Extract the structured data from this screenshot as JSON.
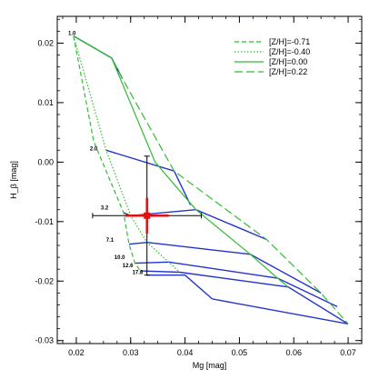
{
  "chart_data": {
    "type": "line",
    "xlabel": "Mg [mag]",
    "ylabel": "H_β [mag]",
    "xlim": [
      0.0165,
      0.0725
    ],
    "ylim": [
      -0.0305,
      0.0245
    ],
    "x_ticks": [
      0.02,
      0.03,
      0.04,
      0.05,
      0.06,
      0.07
    ],
    "x_tick_labels": [
      "0.02",
      "0.03",
      "0.04",
      "0.05",
      "0.06",
      "0.07"
    ],
    "y_ticks": [
      0.02,
      0.01,
      0.0,
      -0.01,
      -0.02,
      -0.03
    ],
    "y_tick_labels": [
      "0.02",
      "0.01",
      "0.00",
      "-0.01",
      "-0.02",
      "-0.03"
    ],
    "legend_position": "top-right",
    "colors": {
      "metallicity_lines": "#33bb33",
      "age_lines": "#2233cc",
      "observation": "#dd1111",
      "error_bar": "#000000"
    },
    "metallicity_lines": [
      {
        "name": "[Z/H]=-0.71",
        "style": "dashed-short",
        "points": [
          [
            0.0195,
            0.0212
          ],
          [
            0.0232,
            0.0035
          ],
          [
            0.0287,
            -0.0085
          ],
          [
            0.0297,
            -0.0138
          ],
          [
            0.0308,
            -0.017
          ],
          [
            0.0318,
            -0.0183
          ]
        ]
      },
      {
        "name": "[Z/H]=-0.40",
        "style": "dotted",
        "points": [
          [
            0.0195,
            0.0212
          ],
          [
            0.0255,
            0.002
          ],
          [
            0.03,
            -0.009
          ],
          [
            0.033,
            -0.0135
          ],
          [
            0.037,
            -0.0168
          ],
          [
            0.039,
            -0.0185
          ]
        ]
      },
      {
        "name": "[Z/H]=0.00",
        "style": "solid",
        "points": [
          [
            0.0195,
            0.0212
          ],
          [
            0.0265,
            0.0175
          ],
          [
            0.0345,
            0.0
          ],
          [
            0.042,
            -0.008
          ],
          [
            0.052,
            -0.0155
          ],
          [
            0.057,
            -0.0195
          ],
          [
            0.059,
            -0.021
          ]
        ]
      },
      {
        "name": "[Z/H]=0.22",
        "style": "dashed-long",
        "points": [
          [
            0.0195,
            0.0212
          ],
          [
            0.0265,
            0.0175
          ],
          [
            0.0285,
            0.014
          ],
          [
            0.038,
            -0.0015
          ],
          [
            0.055,
            -0.013
          ],
          [
            0.065,
            -0.022
          ],
          [
            0.07,
            -0.0272
          ]
        ]
      }
    ],
    "age_lines": [
      {
        "label": "1.0",
        "label_at": [
          0.0185,
          0.0214
        ],
        "points": [
          [
            0.0195,
            0.0212
          ],
          [
            0.0265,
            0.0175
          ],
          [
            0.0285,
            0.014
          ]
        ]
      },
      {
        "label": "2.0",
        "label_at": [
          0.0225,
          0.002
        ],
        "points": [
          [
            0.0255,
            0.002
          ],
          [
            0.038,
            -0.0015
          ],
          [
            0.041,
            -0.0072
          ]
        ]
      },
      {
        "label": "3.2",
        "label_at": [
          0.0245,
          -0.008
        ],
        "points": [
          [
            0.0287,
            -0.0085
          ],
          [
            0.03,
            -0.009
          ],
          [
            0.042,
            -0.008
          ],
          [
            0.055,
            -0.013
          ]
        ]
      },
      {
        "label": "7.1",
        "label_at": [
          0.0255,
          -0.0134
        ],
        "points": [
          [
            0.0297,
            -0.0138
          ],
          [
            0.033,
            -0.0135
          ],
          [
            0.052,
            -0.0155
          ],
          [
            0.065,
            -0.022
          ]
        ]
      },
      {
        "label": "10.0",
        "label_at": [
          0.027,
          -0.0163
        ],
        "points": [
          [
            0.0308,
            -0.017
          ],
          [
            0.037,
            -0.0168
          ],
          [
            0.057,
            -0.0195
          ],
          [
            0.068,
            -0.0243
          ]
        ]
      },
      {
        "label": "12.6",
        "label_at": [
          0.0285,
          -0.0177
        ],
        "points": [
          [
            0.0318,
            -0.0183
          ],
          [
            0.039,
            -0.0185
          ],
          [
            0.059,
            -0.021
          ],
          [
            0.07,
            -0.0272
          ]
        ]
      },
      {
        "label": "17.8",
        "label_at": [
          0.0303,
          -0.0188
        ],
        "points": [
          [
            0.033,
            -0.019
          ],
          [
            0.04,
            -0.019
          ],
          [
            0.045,
            -0.023
          ],
          [
            0.07,
            -0.0272
          ]
        ]
      }
    ],
    "observation": {
      "x": 0.033,
      "y": -0.009,
      "x_err_inner": 0.004,
      "y_err_inner": 0.003,
      "x_err_outer": 0.01,
      "y_err_outer": 0.01
    }
  }
}
